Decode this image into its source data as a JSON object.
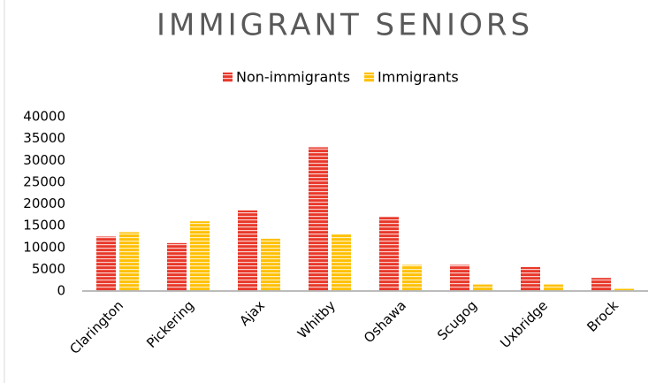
{
  "chart_data": {
    "type": "bar",
    "title": "IMMIGRANT SENIORS",
    "categories": [
      "Clarington",
      "Pickering",
      "Ajax",
      "Whitby",
      "Oshawa",
      "Scugog",
      "Uxbridge",
      "Brock"
    ],
    "series": [
      {
        "name": "Non-immigrants",
        "color": "#e8382a",
        "values": [
          12500,
          11000,
          18500,
          33000,
          17000,
          6000,
          5500,
          3000
        ]
      },
      {
        "name": "Immigrants",
        "color": "#ffc000",
        "values": [
          13500,
          16000,
          12000,
          13000,
          6000,
          1500,
          1500,
          500
        ]
      }
    ],
    "ylim": [
      0,
      40000
    ],
    "yticks": [
      0,
      5000,
      10000,
      15000,
      20000,
      25000,
      30000,
      35000,
      40000
    ],
    "grid": false,
    "legend": "top"
  }
}
